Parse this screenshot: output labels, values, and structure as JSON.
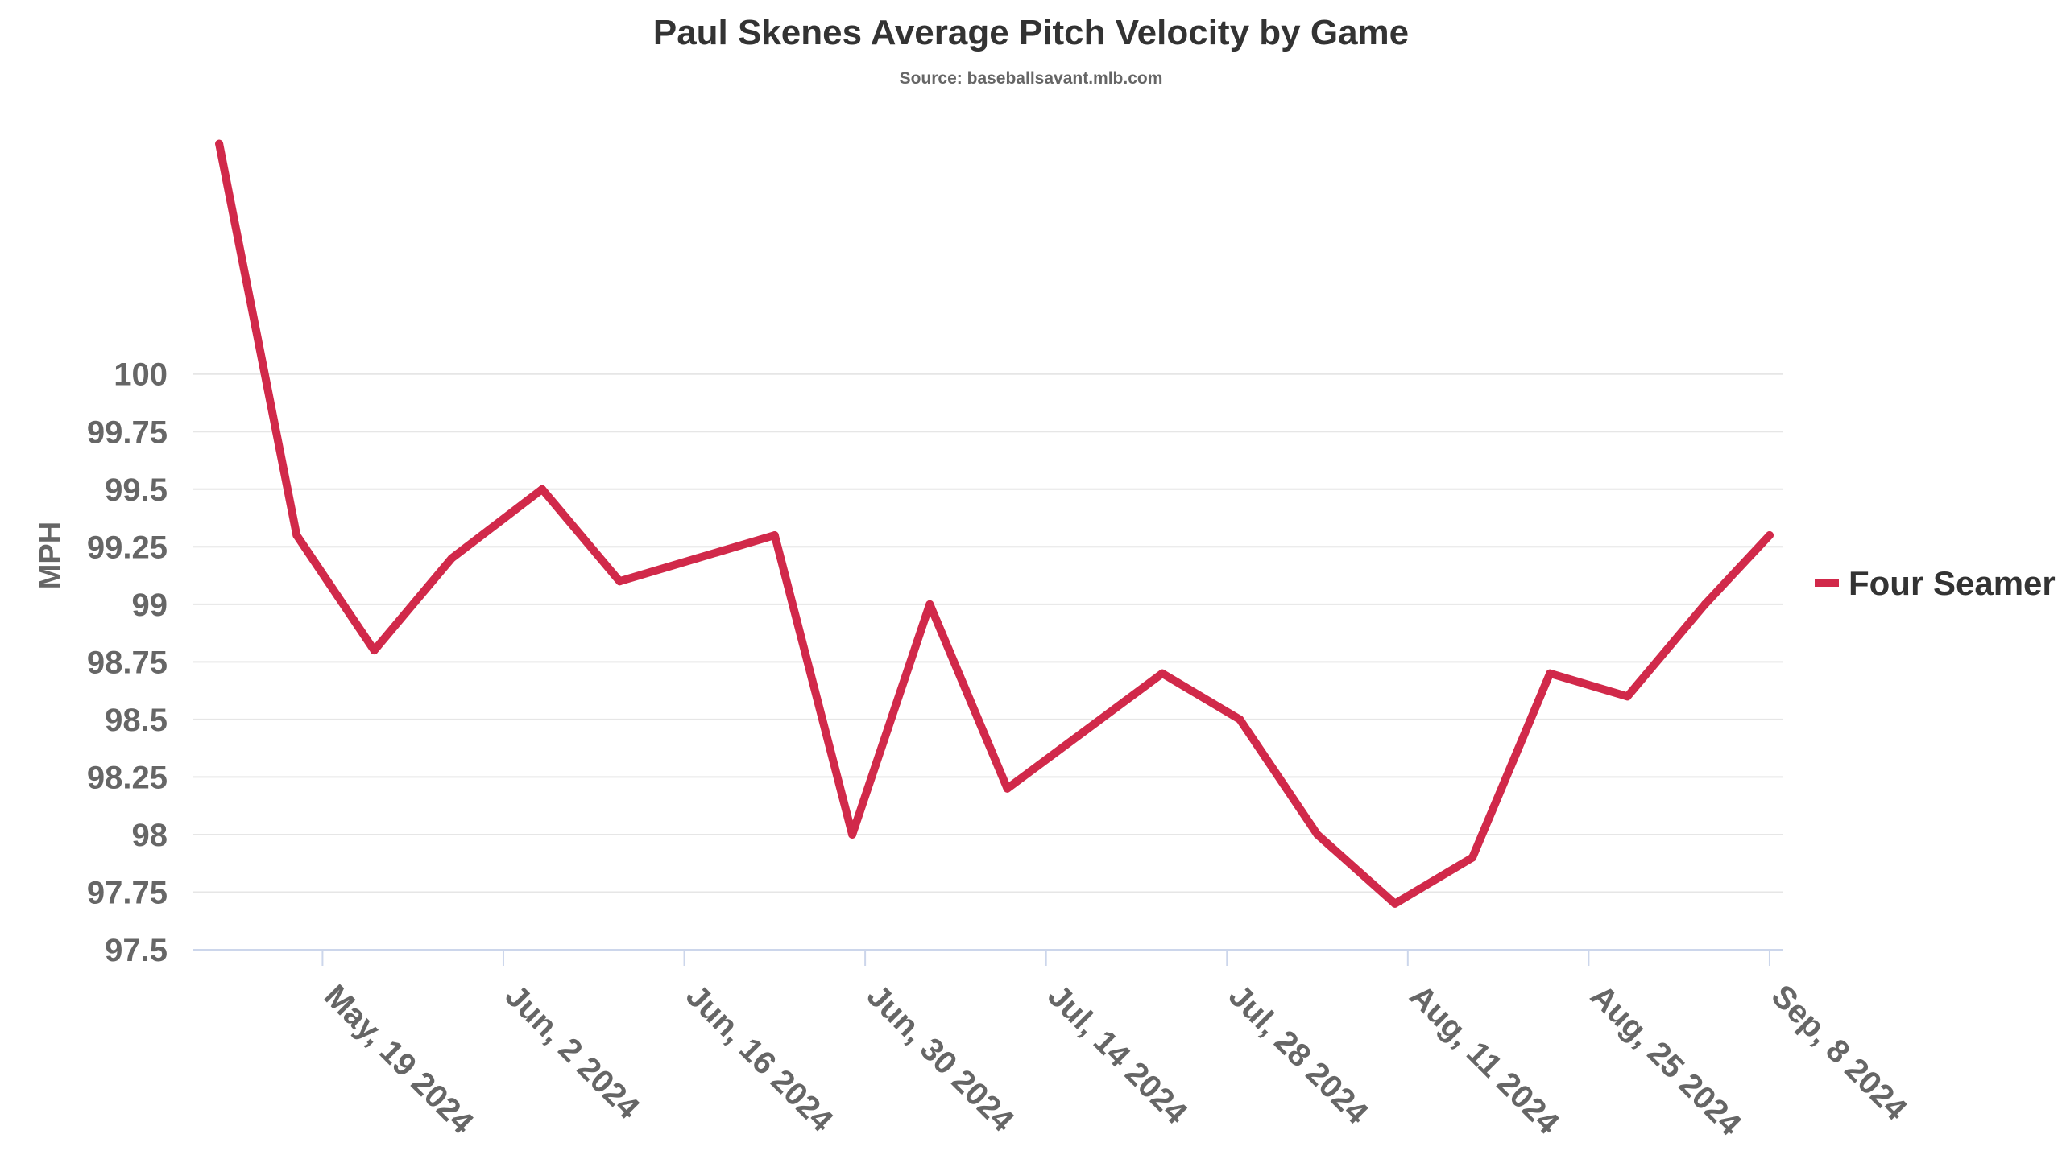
{
  "chart_data": {
    "type": "line",
    "title": "Paul Skenes Average Pitch Velocity by Game",
    "subtitle": "Source: baseballsavant.mlb.com",
    "xlabel": "",
    "ylabel": "MPH",
    "ylim": [
      97.5,
      101.1
    ],
    "y_ticks": [
      97.5,
      97.75,
      98,
      98.25,
      98.5,
      98.75,
      99,
      99.25,
      99.5,
      99.75,
      100
    ],
    "y_tick_labels": [
      "97.5",
      "97.75",
      "98",
      "98.25",
      "98.5",
      "98.75",
      "99",
      "99.25",
      "99.5",
      "99.75",
      "100"
    ],
    "xlim": [
      "2024-05-09",
      "2024-09-09"
    ],
    "x_ticks": [
      "2024-05-19",
      "2024-06-02",
      "2024-06-16",
      "2024-06-30",
      "2024-07-14",
      "2024-07-28",
      "2024-08-11",
      "2024-08-25",
      "2024-09-08"
    ],
    "x_tick_labels": [
      "May, 19 2024",
      "Jun, 2 2024",
      "Jun, 16 2024",
      "Jun, 30 2024",
      "Jul, 14 2024",
      "Jul, 28 2024",
      "Aug, 11 2024",
      "Aug, 25 2024",
      "Sep, 8 2024"
    ],
    "grid": true,
    "legend_position": "right",
    "series": [
      {
        "name": "Four Seamer",
        "color": "#d1294a",
        "x": [
          "2024-05-11",
          "2024-05-17",
          "2024-05-23",
          "2024-05-29",
          "2024-06-05",
          "2024-06-11",
          "2024-06-17",
          "2024-06-23",
          "2024-06-29",
          "2024-07-05",
          "2024-07-11",
          "2024-07-17",
          "2024-07-23",
          "2024-07-29",
          "2024-08-04",
          "2024-08-10",
          "2024-08-16",
          "2024-08-22",
          "2024-08-28",
          "2024-09-03",
          "2024-09-08"
        ],
        "values": [
          101.0,
          99.3,
          98.8,
          99.2,
          99.5,
          99.1,
          99.2,
          99.3,
          98.0,
          99.0,
          98.2,
          98.45,
          98.7,
          98.5,
          98.0,
          97.7,
          97.9,
          98.7,
          98.6,
          99.0,
          99.3
        ]
      }
    ]
  }
}
